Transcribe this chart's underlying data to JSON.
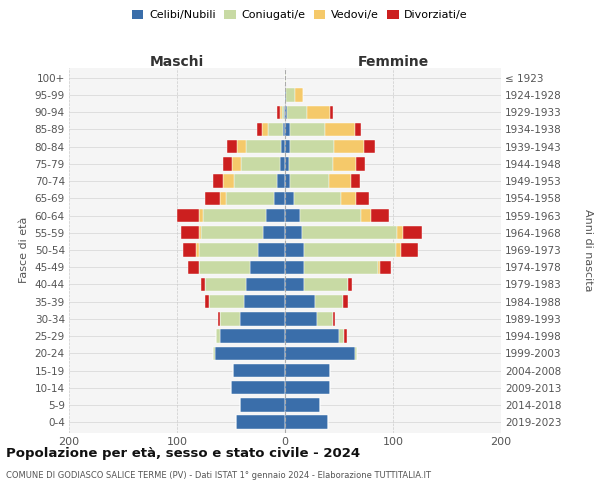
{
  "age_groups": [
    "0-4",
    "5-9",
    "10-14",
    "15-19",
    "20-24",
    "25-29",
    "30-34",
    "35-39",
    "40-44",
    "45-49",
    "50-54",
    "55-59",
    "60-64",
    "65-69",
    "70-74",
    "75-79",
    "80-84",
    "85-89",
    "90-94",
    "95-99",
    "100+"
  ],
  "birth_years": [
    "2019-2023",
    "2014-2018",
    "2009-2013",
    "2004-2008",
    "1999-2003",
    "1994-1998",
    "1989-1993",
    "1984-1988",
    "1979-1983",
    "1974-1978",
    "1969-1973",
    "1964-1968",
    "1959-1963",
    "1954-1958",
    "1949-1953",
    "1944-1948",
    "1939-1943",
    "1934-1938",
    "1929-1933",
    "1924-1928",
    "≤ 1923"
  ],
  "colors": {
    "celibe": "#3a6eaa",
    "coniugato": "#c8daa4",
    "vedovo": "#f5c96a",
    "divorziato": "#cc1f1f"
  },
  "males": {
    "celibe": [
      45,
      42,
      50,
      48,
      65,
      60,
      42,
      38,
      36,
      32,
      25,
      20,
      18,
      10,
      7,
      5,
      4,
      2,
      1,
      0,
      0
    ],
    "coniugato": [
      0,
      0,
      0,
      0,
      2,
      4,
      18,
      32,
      38,
      48,
      55,
      58,
      58,
      45,
      40,
      36,
      32,
      14,
      2,
      0,
      0
    ],
    "vedovo": [
      0,
      0,
      0,
      0,
      0,
      0,
      0,
      0,
      0,
      0,
      2,
      2,
      4,
      5,
      10,
      8,
      8,
      5,
      2,
      0,
      0
    ],
    "divorziato": [
      0,
      0,
      0,
      0,
      0,
      0,
      2,
      4,
      4,
      10,
      12,
      16,
      20,
      14,
      10,
      8,
      10,
      5,
      2,
      0,
      0
    ]
  },
  "females": {
    "celibe": [
      40,
      32,
      42,
      42,
      65,
      50,
      30,
      28,
      18,
      18,
      18,
      16,
      14,
      8,
      5,
      4,
      5,
      5,
      2,
      1,
      0
    ],
    "coniugato": [
      0,
      0,
      0,
      0,
      2,
      5,
      14,
      26,
      40,
      68,
      85,
      88,
      56,
      44,
      36,
      40,
      40,
      32,
      18,
      8,
      1
    ],
    "vedovo": [
      0,
      0,
      0,
      0,
      0,
      0,
      0,
      0,
      0,
      2,
      4,
      5,
      10,
      14,
      20,
      22,
      28,
      28,
      22,
      8,
      0
    ],
    "divorziato": [
      0,
      0,
      0,
      0,
      0,
      2,
      2,
      4,
      4,
      10,
      16,
      18,
      16,
      12,
      8,
      8,
      10,
      5,
      2,
      0,
      0
    ]
  },
  "title": "Popolazione per età, sesso e stato civile - 2024",
  "subtitle": "COMUNE DI GODIASCO SALICE TERME (PV) - Dati ISTAT 1° gennaio 2024 - Elaborazione TUTTITALIA.IT",
  "ylabel_left": "Fasce di età",
  "ylabel_right": "Anni di nascita",
  "xlabel_left": "Maschi",
  "xlabel_right": "Femmine",
  "xlim": 200
}
